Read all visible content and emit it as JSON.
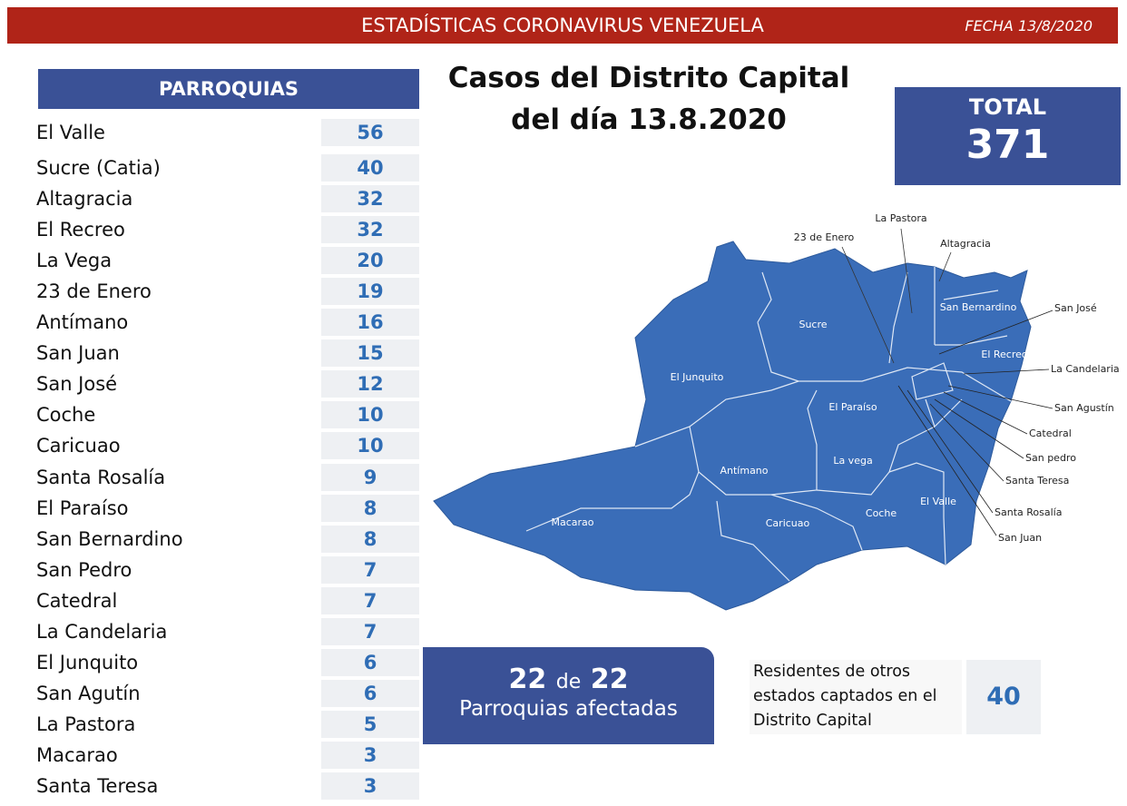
{
  "header": {
    "title": "ESTADÍSTICAS CORONAVIRUS VENEZUELA",
    "date": "FECHA 13/8/2020"
  },
  "table": {
    "header": "PARROQUIAS",
    "rows": [
      [
        "El Valle",
        56
      ],
      [
        "Sucre (Catia)",
        40
      ],
      [
        "Altagracia",
        32
      ],
      [
        "El Recreo",
        32
      ],
      [
        "La Vega",
        20
      ],
      [
        "23 de Enero",
        19
      ],
      [
        "Antímano",
        16
      ],
      [
        "San Juan",
        15
      ],
      [
        "San José",
        12
      ],
      [
        "Coche",
        10
      ],
      [
        "Caricuao",
        10
      ],
      [
        "Santa Rosalía",
        9
      ],
      [
        "El Paraíso",
        8
      ],
      [
        "San Bernardino",
        8
      ],
      [
        "San Pedro",
        7
      ],
      [
        "Catedral",
        7
      ],
      [
        "La Candelaria",
        7
      ],
      [
        "El Junquito",
        6
      ],
      [
        "San Agutín",
        6
      ],
      [
        "La Pastora",
        5
      ],
      [
        "Macarao",
        3
      ],
      [
        "Santa Teresa",
        3
      ]
    ]
  },
  "title_lines": [
    "Casos del Distrito Capital",
    "del día 13.8.2020"
  ],
  "total": {
    "label": "TOTAL",
    "value": 371
  },
  "map": {
    "labels": [
      "Sucre",
      "El Junquito",
      "El Paraíso",
      "Antímano",
      "La vega",
      "Macarao",
      "Caricuao",
      "Coche",
      "El Valle",
      "San Bernardino",
      "El Recreo",
      "23 de Enero",
      "La Pastora",
      "Altagracia",
      "San José",
      "La Candelaria",
      "San Agustín",
      "Catedral",
      "San pedro",
      "Santa Teresa",
      "Santa Rosalía",
      "San Juan"
    ]
  },
  "affected": {
    "count": 22,
    "connector": "de",
    "total": 22,
    "label": "Parroquias afectadas"
  },
  "residents": {
    "text": "Residentes de otros estados captados en el Distrito Capital",
    "value": 40
  }
}
